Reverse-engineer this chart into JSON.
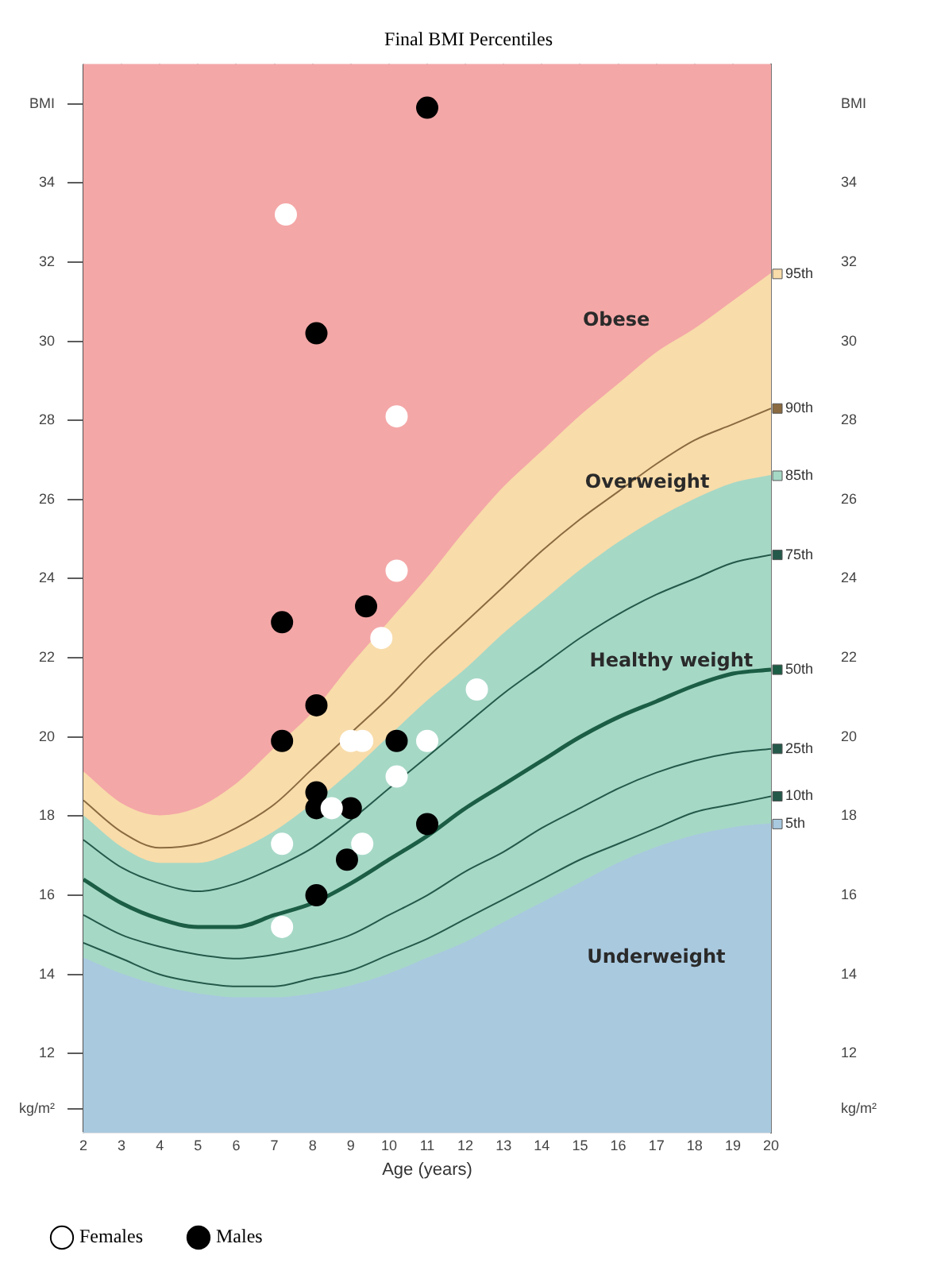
{
  "chart_data": {
    "type": "line",
    "title": "Final BMI Percentiles",
    "xlabel": "Age (years)",
    "x": [
      2,
      3,
      4,
      5,
      6,
      7,
      8,
      9,
      10,
      11,
      12,
      13,
      14,
      15,
      16,
      17,
      18,
      19,
      20
    ],
    "xlim": [
      2,
      20
    ],
    "xticks": [
      2,
      3,
      4,
      5,
      6,
      7,
      8,
      9,
      10,
      11,
      12,
      13,
      14,
      15,
      16,
      17,
      18,
      19,
      20
    ],
    "ylim": [
      10,
      37
    ],
    "yticks": [
      {
        "value": 10.6,
        "label": "kg/m²"
      },
      12,
      14,
      16,
      18,
      20,
      22,
      24,
      26,
      28,
      30,
      32,
      34,
      {
        "value": 36,
        "label": "BMI"
      }
    ],
    "y2lim": [
      10,
      37
    ],
    "y2ticks": [
      {
        "value": 10.6,
        "label": "kg/m²"
      },
      12,
      14,
      16,
      18,
      20,
      22,
      24,
      26,
      28,
      30,
      32,
      34,
      {
        "value": 36,
        "label": "BMI"
      }
    ],
    "grid": true,
    "legend": "bottom left",
    "marker": "circle",
    "line_style": "solid",
    "series": [
      {
        "type": "area",
        "name": "95th",
        "color": "#f8dcaa",
        "marker": "none",
        "values": [
          19.1,
          18.3,
          18.0,
          18.2,
          18.8,
          19.7,
          20.6,
          21.8,
          22.9,
          24.0,
          25.2,
          26.3,
          27.2,
          28.1,
          28.9,
          29.7,
          30.3,
          31.0,
          31.7
        ]
      },
      {
        "name": "90th",
        "color": "#8a6a40",
        "marker": "none",
        "values": [
          18.4,
          17.6,
          17.2,
          17.3,
          17.7,
          18.3,
          19.2,
          20.1,
          21.0,
          22.0,
          22.9,
          23.8,
          24.7,
          25.5,
          26.2,
          26.9,
          27.5,
          27.9,
          28.3
        ]
      },
      {
        "type": "area",
        "name": "85th",
        "color": "#a6d8c6",
        "marker": "none",
        "values": [
          18.0,
          17.2,
          16.8,
          16.8,
          17.1,
          17.6,
          18.3,
          19.1,
          20.0,
          20.9,
          21.7,
          22.6,
          23.4,
          24.2,
          24.9,
          25.5,
          26.0,
          26.4,
          26.6
        ]
      },
      {
        "name": "75th",
        "color": "#24594a",
        "marker": "none",
        "values": [
          17.4,
          16.7,
          16.3,
          16.1,
          16.3,
          16.7,
          17.2,
          17.9,
          18.7,
          19.5,
          20.3,
          21.1,
          21.8,
          22.5,
          23.1,
          23.6,
          24.0,
          24.4,
          24.6
        ]
      },
      {
        "name": "50th",
        "color": "#1b5e45",
        "marker": "none",
        "values": [
          16.4,
          15.8,
          15.4,
          15.2,
          15.2,
          15.5,
          15.8,
          16.3,
          16.9,
          17.5,
          18.2,
          18.8,
          19.4,
          20.0,
          20.5,
          20.9,
          21.3,
          21.6,
          21.7
        ]
      },
      {
        "name": "25th",
        "color": "#24594a",
        "marker": "none",
        "values": [
          15.5,
          15.0,
          14.7,
          14.5,
          14.4,
          14.5,
          14.7,
          15.0,
          15.5,
          16.0,
          16.6,
          17.1,
          17.7,
          18.2,
          18.7,
          19.1,
          19.4,
          19.6,
          19.7
        ]
      },
      {
        "name": "10th",
        "color": "#24594a",
        "marker": "none",
        "values": [
          14.8,
          14.4,
          14.0,
          13.8,
          13.7,
          13.7,
          13.9,
          14.1,
          14.5,
          14.9,
          15.4,
          15.9,
          16.4,
          16.9,
          17.3,
          17.7,
          18.1,
          18.3,
          18.5
        ]
      },
      {
        "type": "area",
        "name": "5th",
        "color": "#a9c9df",
        "marker": "none",
        "values": [
          14.4,
          14.0,
          13.7,
          13.5,
          13.4,
          13.4,
          13.5,
          13.7,
          14.0,
          14.4,
          14.8,
          15.3,
          15.8,
          16.3,
          16.8,
          17.2,
          17.5,
          17.7,
          17.8
        ]
      },
      {
        "type": "scatter",
        "name": "Females",
        "color": "#ffffff",
        "x": [
          7.3,
          10.2,
          10.2,
          9.8,
          9.0,
          9.3,
          11.0,
          10.2,
          8.5,
          7.2,
          9.3,
          7.2,
          12.3
        ],
        "values": [
          33.2,
          28.1,
          24.2,
          22.5,
          19.9,
          19.9,
          19.9,
          19.0,
          18.2,
          17.3,
          17.3,
          15.2,
          21.2
        ]
      },
      {
        "type": "scatter",
        "name": "Males",
        "color": "#000000",
        "x": [
          11.0,
          8.1,
          7.2,
          9.4,
          8.1,
          7.2,
          10.2,
          8.1,
          8.1,
          9.0,
          11.0,
          8.9,
          8.1
        ],
        "values": [
          35.9,
          30.2,
          22.9,
          23.3,
          20.8,
          19.9,
          19.9,
          18.6,
          18.2,
          18.2,
          17.8,
          16.9,
          16.0
        ]
      }
    ],
    "annotations": [
      "Obese",
      "Overweight",
      "Healthy weight",
      "Underweight"
    ]
  }
}
